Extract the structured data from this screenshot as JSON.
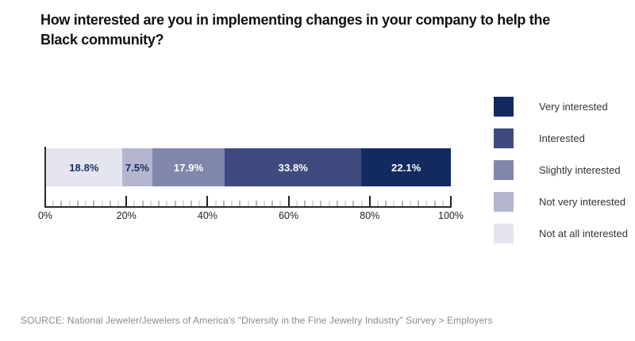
{
  "title": "How interested are you in implementing changes in your company to help the Black community?",
  "title_lines": [
    "How interested are you in implementing changes in your company to help the",
    "Black community?"
  ],
  "source": "SOURCE: National Jeweler/Jewelers of America's \"Diversity in the Fine Jewelry Industry\" Survey > Employers",
  "colors": {
    "very_interested": "#122a60",
    "interested": "#3f4b7e",
    "slightly_interested": "#8187ac",
    "not_very_interested": "#b4b6d0",
    "not_at_all_interested": "#e4e5ef",
    "dark_label_text": "#1b3064",
    "light_label_text": "#ffffff"
  },
  "chart_data": {
    "type": "bar",
    "subtype": "horizontal-stacked",
    "title": "How interested are you in implementing changes in your company to help the Black community?",
    "series": [
      {
        "name": "Not at all interested",
        "value": 18.8,
        "label": "18.8%",
        "color": "#e4e5ef",
        "label_color": "#1b3064"
      },
      {
        "name": "Not very interested",
        "value": 7.5,
        "label": "7.5%",
        "color": "#b4b6d0",
        "label_color": "#1b3064"
      },
      {
        "name": "Slightly interested",
        "value": 17.9,
        "label": "17.9%",
        "color": "#8187ac",
        "label_color": "#ffffff"
      },
      {
        "name": "Interested",
        "value": 33.8,
        "label": "33.8%",
        "color": "#3f4b7e",
        "label_color": "#ffffff"
      },
      {
        "name": "Very interested",
        "value": 22.1,
        "label": "22.1%",
        "color": "#122a60",
        "label_color": "#ffffff"
      }
    ],
    "legend": [
      {
        "label": "Very interested",
        "color": "#122a60"
      },
      {
        "label": "Interested",
        "color": "#3f4b7e"
      },
      {
        "label": "Slightly interested",
        "color": "#8187ac"
      },
      {
        "label": "Not very interested",
        "color": "#b4b6d0"
      },
      {
        "label": "Not at all interested",
        "color": "#e4e5ef"
      }
    ],
    "legend_position": "right",
    "axis": {
      "min": 0,
      "max": 100,
      "major_step": 20,
      "minor_step": 2,
      "tick_labels": [
        "0%",
        "20%",
        "40%",
        "60%",
        "80%",
        "100%"
      ]
    },
    "grid": false
  }
}
